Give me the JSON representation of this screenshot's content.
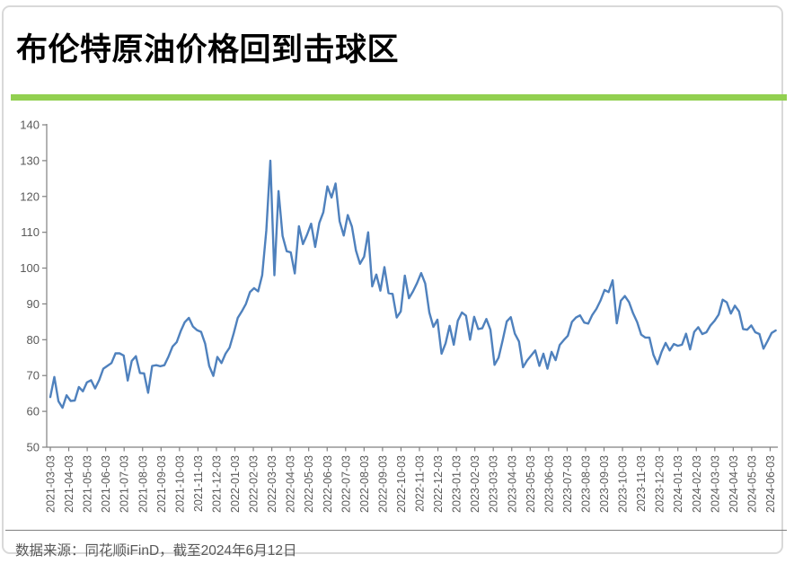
{
  "page": {
    "title": "布伦特原油价格回到击球区",
    "source_note": "数据来源：同花顺iFinD，截至2024年6月12日"
  },
  "colors": {
    "accent_green": "#92d050",
    "line_blue": "#4f81bd",
    "axis_line": "#808080",
    "tick_label": "#595959",
    "card_border": "#d9d9d9",
    "footer_text": "#595959",
    "divider_gray": "#808080"
  },
  "chart_data": {
    "type": "line",
    "title": "布伦特原油价格回到击球区",
    "xlabel": "",
    "ylabel": "",
    "ylim": [
      50,
      140
    ],
    "y_ticks": [
      50,
      60,
      70,
      80,
      90,
      100,
      110,
      120,
      130,
      140
    ],
    "grid": false,
    "legend_position": "none",
    "line_color": "#4f81bd",
    "x_start": "2021-03-03",
    "x_end": "2024-06-12",
    "x_tick_labels": [
      "2021-03-03",
      "2021-04-03",
      "2021-05-03",
      "2021-06-03",
      "2021-07-03",
      "2021-08-03",
      "2021-09-03",
      "2021-10-03",
      "2021-11-03",
      "2021-12-03",
      "2022-01-03",
      "2022-02-03",
      "2022-03-03",
      "2022-04-03",
      "2022-05-03",
      "2022-06-03",
      "2022-07-03",
      "2022-08-03",
      "2022-09-03",
      "2022-10-03",
      "2022-11-03",
      "2022-12-03",
      "2023-01-03",
      "2023-02-03",
      "2023-03-03",
      "2023-04-03",
      "2023-05-03",
      "2023-06-03",
      "2023-07-03",
      "2023-08-03",
      "2023-09-03",
      "2023-10-03",
      "2023-11-03",
      "2023-12-03",
      "2024-01-03",
      "2024-02-03",
      "2024-03-03",
      "2024-04-03",
      "2024-05-03",
      "2024-06-03"
    ],
    "values": [
      64.0,
      69.6,
      62.8,
      61.0,
      64.5,
      62.9,
      63.0,
      66.8,
      65.6,
      68.1,
      68.7,
      66.4,
      68.7,
      71.9,
      72.7,
      73.5,
      76.2,
      76.2,
      75.6,
      68.6,
      74.1,
      75.4,
      70.7,
      70.6,
      65.2,
      72.7,
      72.9,
      72.6,
      72.9,
      75.3,
      78.1,
      79.3,
      82.4,
      84.9,
      86.1,
      83.7,
      82.7,
      82.2,
      78.9,
      72.7,
      69.9,
      75.2,
      73.5,
      76.1,
      77.8,
      81.8,
      86.1,
      87.9,
      90.0,
      93.3,
      94.4,
      93.5,
      98.0,
      110.5,
      130.0,
      98.0,
      121.5,
      109.0,
      104.7,
      104.4,
      98.5,
      111.7,
      106.7,
      109.3,
      112.4,
      105.9,
      112.6,
      115.6,
      122.8,
      119.7,
      123.6,
      113.1,
      109.1,
      114.8,
      111.6,
      104.9,
      101.2,
      103.2,
      110.0,
      94.9,
      98.2,
      93.7,
      100.3,
      93.0,
      92.8,
      86.2,
      87.9,
      97.9,
      91.6,
      93.5,
      95.8,
      98.6,
      95.7,
      87.6,
      83.6,
      85.6,
      76.1,
      79.0,
      83.9,
      78.6,
      85.3,
      87.6,
      86.7,
      80.0,
      86.4,
      83.0,
      83.2,
      85.8,
      82.8,
      73.0,
      75.0,
      79.8,
      85.1,
      86.3,
      81.7,
      79.5,
      72.3,
      74.2,
      75.6,
      77.0,
      72.7,
      76.1,
      71.9,
      76.6,
      74.3,
      78.5,
      79.9,
      81.1,
      85.0,
      86.2,
      86.8,
      84.8,
      84.5,
      86.9,
      88.6,
      90.9,
      93.9,
      93.3,
      96.6,
      84.6,
      90.9,
      92.2,
      90.5,
      87.4,
      84.9,
      81.4,
      80.6,
      80.6,
      75.8,
      73.2,
      76.6,
      79.1,
      77.0,
      78.8,
      78.3,
      78.6,
      81.7,
      77.3,
      82.2,
      83.5,
      81.6,
      82.1,
      84.0,
      85.3,
      87.0,
      91.2,
      90.4,
      87.3,
      89.5,
      87.9,
      83.0,
      82.8,
      84.0,
      82.1,
      81.6,
      77.5,
      79.6,
      81.9,
      82.6
    ]
  }
}
